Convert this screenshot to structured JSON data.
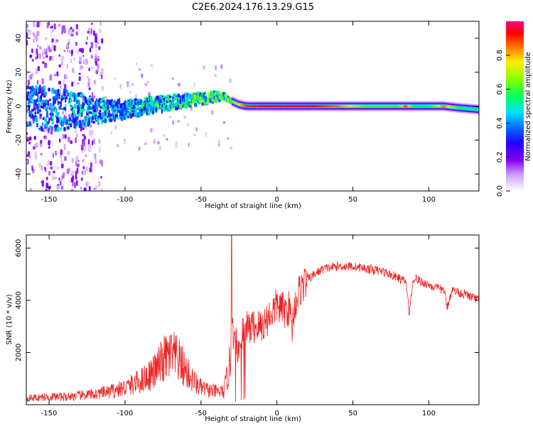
{
  "title": "C2E6.2024.176.13.29.G15",
  "colors": {
    "snr_line": "#ee2222"
  },
  "chart_data": [
    {
      "type": "heatmap",
      "xlabel": "Height of straight line (km)",
      "ylabel": "Frequency (Hz)",
      "xlim": [
        -165,
        133
      ],
      "ylim": [
        -50,
        50
      ],
      "x_ticks": [
        -150,
        -100,
        -50,
        0,
        50,
        100
      ],
      "x_tick_labels": [
        "-150",
        "-100",
        "-50",
        "0",
        "50",
        "100"
      ],
      "y_ticks": [
        -40,
        -20,
        0,
        20,
        40
      ],
      "y_tick_labels": [
        "-40",
        "-20",
        "0",
        "20",
        "40"
      ],
      "colorbar": {
        "label": "Normalized spectral amplitude",
        "range": [
          0,
          1
        ],
        "ticks": [
          0,
          0.2,
          0.4,
          0.6,
          0.8
        ],
        "tick_labels": [
          "0.0",
          "0.2",
          "0.4",
          "0.6",
          "0.8"
        ],
        "colormap": "rainbow (white-purple-blue-cyan-green-yellow-red-magenta)"
      },
      "ridge": {
        "x": [
          -165,
          -140,
          -120,
          -100,
          -80,
          -60,
          -45,
          -35,
          -30,
          -25,
          -20,
          0,
          20,
          40,
          60,
          80,
          85,
          90,
          100,
          110,
          120,
          133
        ],
        "frequency": [
          -1,
          -2,
          -3,
          -2,
          1,
          3,
          5,
          6,
          3,
          1,
          0,
          0,
          0,
          0,
          0,
          0,
          0,
          0,
          0,
          0,
          -1,
          -2
        ],
        "amplitude": [
          0.4,
          0.45,
          0.45,
          0.45,
          0.5,
          0.55,
          0.6,
          0.6,
          0.65,
          0.75,
          0.9,
          0.95,
          0.95,
          0.85,
          0.6,
          0.6,
          0.9,
          0.55,
          0.55,
          0.85,
          0.55,
          0.5
        ],
        "spread_hz": [
          25,
          25,
          14,
          10,
          9,
          8,
          6,
          4,
          2,
          2,
          2,
          2,
          2,
          2,
          2,
          2,
          2,
          2,
          2,
          2,
          2,
          2
        ]
      }
    },
    {
      "type": "line",
      "xlabel": "Height of straight line (km)",
      "ylabel": "SNR (10 * v/v)",
      "xlim": [
        -165,
        133
      ],
      "ylim": [
        0,
        6500
      ],
      "x_ticks": [
        -150,
        -100,
        -50,
        0,
        50,
        100
      ],
      "x_tick_labels": [
        "-150",
        "-100",
        "-50",
        "0",
        "50",
        "100"
      ],
      "y_ticks": [
        2000,
        4000,
        6000
      ],
      "y_tick_labels": [
        "2000",
        "4000",
        "6000"
      ],
      "series": [
        {
          "x": [
            -165,
            -150,
            -140,
            -130,
            -120,
            -110,
            -100,
            -90,
            -80,
            -75,
            -70,
            -65,
            -60,
            -55,
            -50,
            -45,
            -40,
            -35,
            -31,
            -30,
            -28,
            -25,
            -22,
            -20,
            -15,
            -10,
            -5,
            0,
            5,
            8,
            10,
            12,
            15,
            20,
            25,
            30,
            40,
            50,
            60,
            70,
            80,
            85,
            87,
            90,
            95,
            100,
            105,
            110,
            112,
            115,
            120,
            125,
            133
          ],
          "y": [
            250,
            300,
            300,
            350,
            400,
            500,
            650,
            900,
            1300,
            1700,
            1900,
            1700,
            1300,
            900,
            650,
            550,
            500,
            500,
            1500,
            2500,
            3000,
            2000,
            3000,
            2900,
            3000,
            3000,
            3400,
            3800,
            3600,
            3700,
            3000,
            3900,
            4400,
            4800,
            5000,
            5200,
            5300,
            5300,
            5200,
            5100,
            4850,
            4700,
            3500,
            4900,
            4700,
            4600,
            4450,
            4400,
            3700,
            4400,
            4300,
            4200,
            4000
          ]
        }
      ]
    }
  ]
}
